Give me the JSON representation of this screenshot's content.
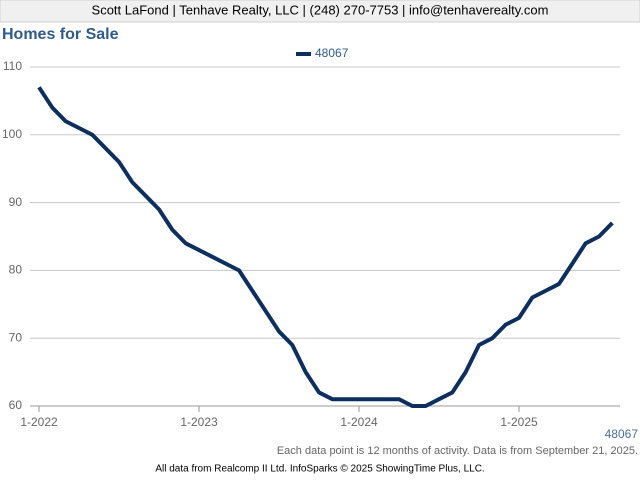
{
  "header": "Scott LaFond | Tenhave Realty, LLC | (248) 270-7753 | info@tenhaverealty.com",
  "chart_data": {
    "type": "line",
    "title": "Homes for Sale",
    "x": [
      "1-2022",
      "2-2022",
      "3-2022",
      "4-2022",
      "5-2022",
      "6-2022",
      "7-2022",
      "8-2022",
      "9-2022",
      "10-2022",
      "11-2022",
      "12-2022",
      "1-2023",
      "2-2023",
      "3-2023",
      "4-2023",
      "5-2023",
      "6-2023",
      "7-2023",
      "8-2023",
      "9-2023",
      "10-2023",
      "11-2023",
      "12-2023",
      "1-2024",
      "2-2024",
      "3-2024",
      "4-2024",
      "5-2024",
      "6-2024",
      "7-2024",
      "8-2024",
      "9-2024",
      "10-2024",
      "11-2024",
      "12-2024",
      "1-2025",
      "2-2025",
      "3-2025",
      "4-2025",
      "5-2025",
      "6-2025",
      "7-2025",
      "8-2025"
    ],
    "series": [
      {
        "name": "48067",
        "color": "#0d2f5e",
        "values": [
          107,
          104,
          102,
          101,
          100,
          98,
          96,
          93,
          91,
          89,
          86,
          84,
          83,
          82,
          81,
          80,
          77,
          74,
          71,
          69,
          65,
          62,
          61,
          61,
          61,
          61,
          61,
          61,
          60,
          60,
          61,
          62,
          65,
          69,
          70,
          72,
          73,
          76,
          77,
          78,
          81,
          84,
          85,
          87
        ]
      }
    ],
    "ylim": [
      60,
      110
    ],
    "yticks": [
      60,
      70,
      80,
      90,
      100,
      110
    ],
    "grid": true,
    "legend": "top",
    "footnote": "Each data point is 12 months of activity. Data is from September 21, 2025.",
    "source": "All data from Realcomp II Ltd. InfoSparks © 2025 ShowingTime Plus, LLC."
  }
}
